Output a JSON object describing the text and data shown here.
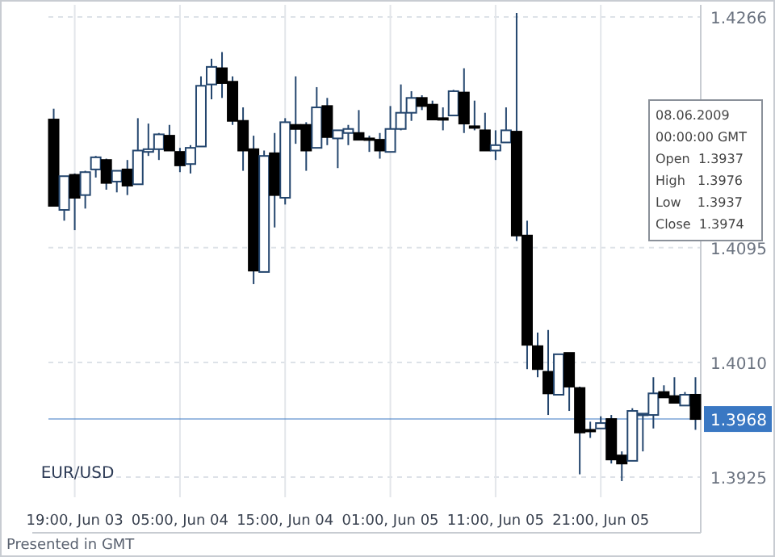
{
  "chart_data": {
    "type": "candlestick",
    "categories": [
      null,
      null,
      "19:00, Jun 03",
      null,
      null,
      null,
      null,
      null,
      null,
      null,
      null,
      null,
      "05:00, Jun 04",
      null,
      null,
      null,
      null,
      null,
      null,
      null,
      null,
      null,
      "15:00, Jun 04",
      null,
      null,
      null,
      null,
      null,
      null,
      null,
      null,
      null,
      "01:00, Jun 05",
      null,
      null,
      null,
      null,
      null,
      null,
      null,
      null,
      null,
      "11:00, Jun 05",
      null,
      null,
      null,
      null,
      null,
      null,
      null,
      null,
      null,
      "21:00, Jun 05",
      null,
      null,
      null,
      null,
      null,
      null,
      null,
      null,
      null
    ],
    "ohlc": [
      [
        1.419,
        1.4198,
        1.4126,
        1.4126
      ],
      [
        1.4123,
        1.4148,
        1.4115,
        1.4148
      ],
      [
        1.4149,
        1.415,
        1.4108,
        1.4132
      ],
      [
        1.4134,
        1.4152,
        1.4124,
        1.4151
      ],
      [
        1.4153,
        1.4163,
        1.4147,
        1.4162
      ],
      [
        1.416,
        1.4161,
        1.4138,
        1.4143
      ],
      [
        1.4144,
        1.4152,
        1.4136,
        1.4152
      ],
      [
        1.4153,
        1.416,
        1.4134,
        1.4141
      ],
      [
        1.4142,
        1.4191,
        1.4142,
        1.4167
      ],
      [
        1.4166,
        1.4187,
        1.4163,
        1.4168
      ],
      [
        1.4168,
        1.418,
        1.416,
        1.4179
      ],
      [
        1.4178,
        1.4186,
        1.4167,
        1.4167
      ],
      [
        1.4166,
        1.4169,
        1.4151,
        1.4156
      ],
      [
        1.4157,
        1.4171,
        1.415,
        1.4169
      ],
      [
        1.417,
        1.4222,
        1.417,
        1.4215
      ],
      [
        1.4216,
        1.4235,
        1.4205,
        1.4229
      ],
      [
        1.4228,
        1.424,
        1.4206,
        1.4217
      ],
      [
        1.4218,
        1.4222,
        1.4186,
        1.4189
      ],
      [
        1.4189,
        1.4199,
        1.4152,
        1.4167
      ],
      [
        1.4168,
        1.4178,
        1.4068,
        1.4078
      ],
      [
        1.4077,
        1.4167,
        1.4077,
        1.4163
      ],
      [
        1.4165,
        1.418,
        1.411,
        1.4134
      ],
      [
        1.4132,
        1.4191,
        1.4127,
        1.4188
      ],
      [
        1.4186,
        1.4222,
        1.4172,
        1.4183
      ],
      [
        1.4186,
        1.4188,
        1.4152,
        1.4167
      ],
      [
        1.4169,
        1.4214,
        1.4169,
        1.4199
      ],
      [
        1.42,
        1.4206,
        1.4171,
        1.4177
      ],
      [
        1.4176,
        1.4182,
        1.4154,
        1.4182
      ],
      [
        1.418,
        1.4186,
        1.4171,
        1.4183
      ],
      [
        1.418,
        1.4197,
        1.4175,
        1.4175
      ],
      [
        1.4176,
        1.4178,
        1.4166,
        1.4175
      ],
      [
        1.4175,
        1.418,
        1.4161,
        1.4167
      ],
      [
        1.4166,
        1.42,
        1.4166,
        1.4183
      ],
      [
        1.4183,
        1.4216,
        1.4182,
        1.4195
      ],
      [
        1.4195,
        1.4211,
        1.4189,
        1.4206
      ],
      [
        1.4206,
        1.4208,
        1.4197,
        1.42
      ],
      [
        1.4201,
        1.4204,
        1.419,
        1.419
      ],
      [
        1.4191,
        1.4199,
        1.4182,
        1.419
      ],
      [
        1.4193,
        1.4212,
        1.4193,
        1.4211
      ],
      [
        1.421,
        1.4228,
        1.418,
        1.4187
      ],
      [
        1.4185,
        1.4204,
        1.4182,
        1.4184
      ],
      [
        1.4182,
        1.4195,
        1.4167,
        1.4167
      ],
      [
        1.4167,
        1.4182,
        1.416,
        1.4171
      ],
      [
        1.4173,
        1.4199,
        1.4173,
        1.4182
      ],
      [
        1.4181,
        1.4269,
        1.41,
        1.4104
      ],
      [
        1.4104,
        1.4115,
        1.4005,
        1.4023
      ],
      [
        1.4022,
        1.4032,
        1.3999,
        1.4005
      ],
      [
        1.4003,
        1.4034,
        1.3971,
        1.3987
      ],
      [
        1.3986,
        1.4016,
        1.3986,
        1.4016
      ],
      [
        1.4017,
        1.4017,
        1.3974,
        1.3992
      ],
      [
        1.3991,
        1.3992,
        1.3927,
        1.3958
      ],
      [
        1.396,
        1.3966,
        1.3954,
        1.3959
      ],
      [
        1.3961,
        1.397,
        1.3961,
        1.3965
      ],
      [
        1.3968,
        1.3971,
        1.3935,
        1.3938
      ],
      [
        1.3941,
        1.3944,
        1.3922,
        1.3935
      ],
      [
        1.3937,
        1.3976,
        1.3937,
        1.3974
      ],
      [
        1.3971,
        1.3972,
        1.3944,
        1.3972
      ],
      [
        1.3971,
        1.3999,
        1.3961,
        1.3987
      ],
      [
        1.3988,
        1.3993,
        1.3984,
        1.3984
      ],
      [
        1.3985,
        1.3999,
        1.398,
        1.398
      ],
      [
        1.3978,
        1.3988,
        1.3978,
        1.3986
      ],
      [
        1.3986,
        1.3999,
        1.396,
        1.3968
      ]
    ],
    "ylim": [
      1.391,
      1.4275
    ],
    "yticks": [
      1.3925,
      {
        "value": 1.401,
        "label": "1.4010"
      },
      1.4095,
      1.4266
    ],
    "grid": true,
    "ref_lines": [
      {
        "axis": "y",
        "value": 1.3968,
        "label": "1.3968",
        "color": "#3a78c3"
      }
    ],
    "annotations": [
      "EUR/USD",
      "Presented in GMT",
      "08.06.2009",
      "00:00:00 GMT",
      "Open  1.3937",
      "High   1.3976",
      "Low    1.3937",
      "Close  1.3974"
    ]
  }
}
